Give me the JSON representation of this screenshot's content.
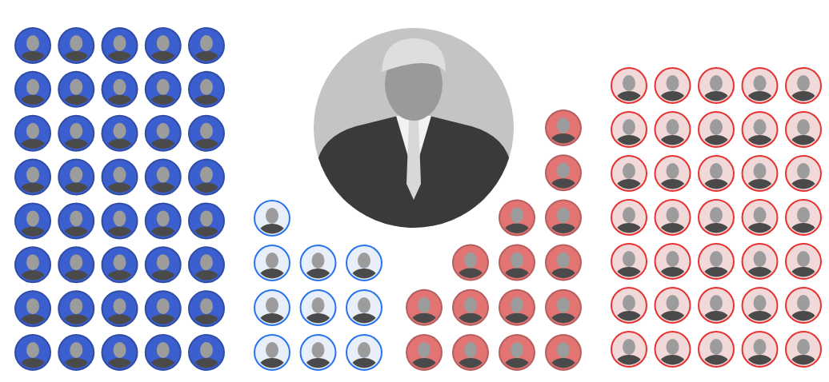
{
  "chart_data": {
    "type": "unit",
    "values": [
      40,
      10,
      15,
      35
    ],
    "colors": [
      "#3b5fce",
      "#e9eff9",
      "#e27474",
      "#f2d9d9"
    ]
  }
}
